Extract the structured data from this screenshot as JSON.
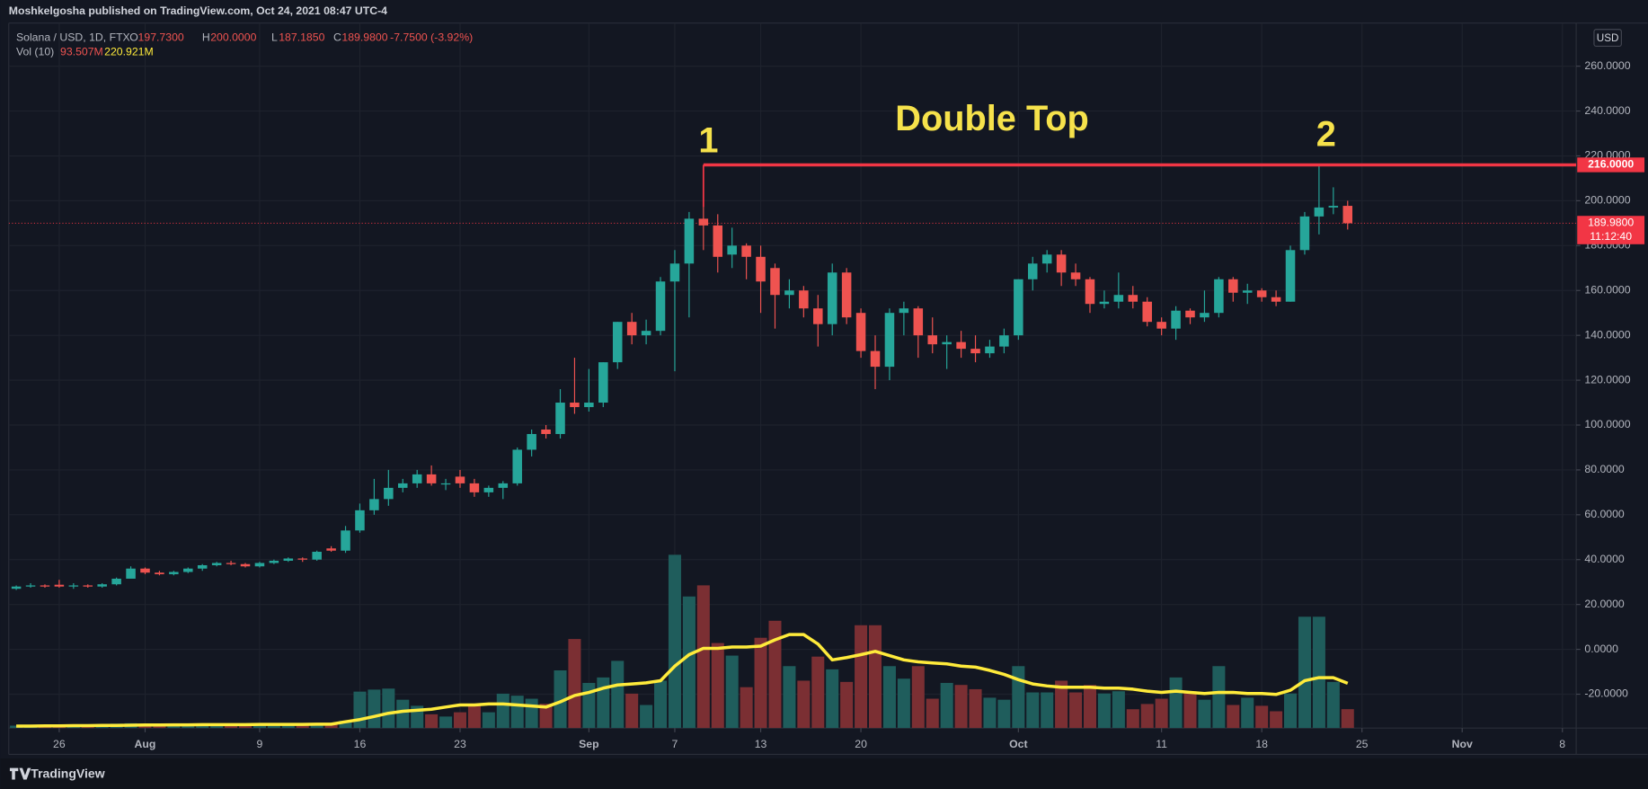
{
  "header": {
    "text": "Moshkelgosha published on TradingView.com, Oct 24, 2021 08:47 UTC-4"
  },
  "footer": {
    "brand": "TradingView"
  },
  "chart_data": {
    "type": "candlestick",
    "currency": "USD",
    "x": [
      "Jul 23",
      "Jul 24",
      "Jul 25",
      "Jul 26",
      "Jul 27",
      "Jul 28",
      "Jul 29",
      "Jul 30",
      "Jul 31",
      "Aug 1",
      "Aug 2",
      "Aug 3",
      "Aug 4",
      "Aug 5",
      "Aug 6",
      "Aug 7",
      "Aug 8",
      "Aug 9",
      "Aug 10",
      "Aug 11",
      "Aug 12",
      "Aug 13",
      "Aug 14",
      "Aug 15",
      "Aug 16",
      "Aug 17",
      "Aug 18",
      "Aug 19",
      "Aug 20",
      "Aug 21",
      "Aug 22",
      "Aug 23",
      "Aug 24",
      "Aug 25",
      "Aug 26",
      "Aug 27",
      "Aug 28",
      "Aug 29",
      "Aug 30",
      "Aug 31",
      "Sep 1",
      "Sep 2",
      "Sep 3",
      "Sep 4",
      "Sep 5",
      "Sep 6",
      "Sep 7",
      "Sep 8",
      "Sep 9",
      "Sep 10",
      "Sep 11",
      "Sep 12",
      "Sep 13",
      "Sep 14",
      "Sep 15",
      "Sep 16",
      "Sep 17",
      "Sep 18",
      "Sep 19",
      "Sep 20",
      "Sep 21",
      "Sep 22",
      "Sep 23",
      "Sep 24",
      "Sep 25",
      "Sep 26",
      "Sep 27",
      "Sep 28",
      "Sep 29",
      "Sep 30",
      "Oct 1",
      "Oct 2",
      "Oct 3",
      "Oct 4",
      "Oct 5",
      "Oct 6",
      "Oct 7",
      "Oct 8",
      "Oct 9",
      "Oct 10",
      "Oct 11",
      "Oct 12",
      "Oct 13",
      "Oct 14",
      "Oct 15",
      "Oct 16",
      "Oct 17",
      "Oct 18",
      "Oct 19",
      "Oct 20",
      "Oct 21",
      "Oct 22",
      "Oct 23",
      "Oct 24"
    ],
    "series": [
      {
        "name": "Solana / USD, 1D, FTX",
        "up_color": "#26a69a",
        "down_color": "#ef5350",
        "open": [
          27,
          28,
          28.5,
          28.8,
          28,
          28.5,
          28,
          29,
          31.5,
          36,
          34.2,
          33.5,
          34.5,
          36,
          37.5,
          38.5,
          38,
          37,
          38.5,
          39.5,
          40.5,
          40,
          45,
          44,
          53,
          62,
          67,
          72,
          74,
          78,
          73.5,
          77,
          74,
          70,
          72,
          74,
          89,
          98,
          96,
          110,
          108,
          110,
          128,
          146,
          140,
          142,
          164,
          172,
          192,
          189,
          176,
          180,
          175,
          170,
          158,
          160,
          152,
          145,
          168,
          150,
          133,
          126,
          150,
          152,
          140,
          136,
          137,
          134,
          132,
          135,
          140,
          165,
          172,
          176,
          168,
          165,
          154,
          155,
          158,
          155,
          146,
          143,
          151,
          148,
          150,
          165,
          159,
          160,
          157,
          155,
          178,
          193,
          197,
          197.73
        ],
        "high": [
          28.5,
          29.5,
          29,
          31,
          29.5,
          29,
          29.5,
          32,
          37,
          36.5,
          35,
          35,
          36.5,
          38,
          39,
          39.5,
          38.5,
          39,
          40,
          41,
          41,
          44,
          46,
          55,
          65,
          76,
          80,
          76,
          80,
          82,
          76,
          80,
          76,
          73,
          75,
          90,
          98,
          100,
          116,
          130,
          125,
          128,
          146,
          150,
          147,
          166,
          178,
          195,
          216,
          194,
          188,
          181,
          180,
          172,
          165,
          162,
          158,
          172,
          170,
          152,
          140,
          152,
          155,
          153,
          148,
          140,
          142,
          140,
          138,
          143,
          165,
          175,
          178,
          178,
          172,
          166,
          160,
          168,
          162,
          157,
          148,
          153,
          152,
          160,
          166,
          166,
          163,
          161,
          160,
          180,
          195,
          216,
          206,
          200
        ],
        "low": [
          26.5,
          27.5,
          27.5,
          27.5,
          27,
          27.5,
          27.5,
          28.5,
          32,
          33.5,
          33,
          33,
          34,
          35,
          37,
          37.5,
          36.5,
          36.5,
          38,
          39,
          39,
          39.5,
          43.5,
          43,
          52,
          60,
          64,
          70,
          72,
          73,
          71,
          72,
          68,
          68,
          67,
          73,
          86,
          94,
          94,
          105,
          106,
          108,
          125,
          136,
          136,
          140,
          124,
          148,
          178,
          168,
          170,
          165,
          150,
          143,
          152,
          148,
          135,
          140,
          145,
          130,
          116,
          120,
          140,
          130,
          132,
          125,
          130,
          128,
          130,
          132,
          138,
          160,
          168,
          162,
          162,
          150,
          152,
          152,
          152,
          144,
          140,
          138,
          145,
          146,
          148,
          155,
          154,
          155,
          153,
          155,
          176,
          185,
          194,
          187.185
        ],
        "close": [
          28,
          28.5,
          28,
          28,
          28.5,
          28,
          29,
          31.5,
          36,
          34.2,
          33.5,
          34.5,
          36,
          37.5,
          38.5,
          38,
          37,
          38.5,
          39.5,
          40.5,
          40,
          43.5,
          44,
          53,
          62,
          67,
          72,
          74,
          78,
          74,
          74,
          74,
          70,
          72,
          74,
          89,
          96,
          96,
          110,
          108,
          110,
          128,
          146,
          140,
          142,
          164,
          172,
          192,
          189,
          175,
          180,
          175,
          164,
          158,
          160,
          152,
          145,
          168,
          148,
          133,
          126,
          150,
          152,
          140,
          136,
          137,
          134,
          132,
          135,
          140,
          165,
          172,
          176,
          168,
          165,
          154,
          155,
          158,
          155,
          146,
          143,
          151,
          148,
          150,
          165,
          159,
          160,
          157,
          155,
          178,
          193,
          197,
          197.73,
          189.98
        ]
      }
    ],
    "legend": {
      "open_label": "O",
      "open": "197.7300",
      "high_label": "H",
      "high": "200.0000",
      "low_label": "L",
      "low": "187.1850",
      "close_label": "C",
      "close": "189.9800",
      "change": "-7.7500 (-3.92%)"
    },
    "volume": {
      "name": "Vol (10)",
      "up_color": "#1f5d5c",
      "down_color": "#7b2f33",
      "ma_color": "#ffeb3b",
      "values": [
        12,
        14,
        10,
        15,
        13,
        11,
        16,
        22,
        24,
        20,
        14,
        16,
        18,
        20,
        22,
        15,
        14,
        18,
        19,
        17,
        16,
        22,
        18,
        36,
        180,
        190,
        195,
        140,
        110,
        68,
        57,
        78,
        110,
        78,
        170,
        160,
        145,
        120,
        285,
        440,
        223,
        250,
        332,
        170,
        114,
        234,
        856,
        650,
        705,
        420,
        358,
        202,
        446,
        530,
        306,
        234,
        353,
        290,
        228,
        508,
        508,
        306,
        244,
        306,
        145,
        223,
        213,
        192,
        150,
        140,
        306,
        176,
        176,
        234,
        176,
        213,
        171,
        182,
        93,
        119,
        145,
        250,
        182,
        140,
        306,
        114,
        150,
        110,
        83,
        171,
        550,
        550,
        228,
        93.507
      ],
      "ma": [
        10,
        10,
        11,
        11,
        12,
        12,
        13,
        13,
        14,
        15,
        15,
        16,
        16,
        17,
        17,
        17,
        17,
        18,
        18,
        18,
        18,
        19,
        19,
        31,
        42,
        57,
        73,
        83,
        88,
        93,
        104,
        114,
        114,
        119,
        119,
        114,
        109,
        104,
        130,
        161,
        176,
        197,
        213,
        218,
        223,
        234,
        306,
        363,
        394,
        394,
        400,
        400,
        405,
        436,
        462,
        462,
        415,
        337,
        348,
        363,
        379,
        358,
        337,
        327,
        322,
        317,
        306,
        301,
        285,
        265,
        239,
        218,
        208,
        202,
        202,
        202,
        197,
        197,
        192,
        182,
        176,
        182,
        176,
        171,
        176,
        176,
        171,
        171,
        166,
        187,
        234,
        249,
        249,
        220.921
      ],
      "value_label": "93.507M",
      "ma_label": "220.921M"
    },
    "xlim": [
      "Jul 22",
      "Nov 9"
    ],
    "xticks": [
      {
        "value": "Jul 26",
        "label": "26"
      },
      {
        "value": "Aug 1",
        "label": "Aug"
      },
      {
        "value": "Aug 9",
        "label": "9"
      },
      {
        "value": "Aug 16",
        "label": "16"
      },
      {
        "value": "Aug 23",
        "label": "23"
      },
      {
        "value": "Sep 1",
        "label": "Sep"
      },
      {
        "value": "Sep 7",
        "label": "7"
      },
      {
        "value": "Sep 13",
        "label": "13"
      },
      {
        "value": "Sep 20",
        "label": "20"
      },
      {
        "value": "Oct 1",
        "label": "Oct"
      },
      {
        "value": "Oct 11",
        "label": "11"
      },
      {
        "value": "Oct 18",
        "label": "18"
      },
      {
        "value": "Oct 25",
        "label": "25"
      },
      {
        "value": "Nov 1",
        "label": "Nov"
      },
      {
        "value": "Nov 8",
        "label": "8"
      }
    ],
    "ylim": [
      -35.1,
      279.2
    ],
    "yticks": [
      {
        "value": 260,
        "label": "260.0000"
      },
      {
        "value": 240,
        "label": "240.0000"
      },
      {
        "value": 220,
        "label": "220.0000"
      },
      {
        "value": 200,
        "label": "200.0000"
      },
      {
        "value": 180,
        "label": "180.0000"
      },
      {
        "value": 160,
        "label": "160.0000"
      },
      {
        "value": 140,
        "label": "140.0000"
      },
      {
        "value": 120,
        "label": "120.0000"
      },
      {
        "value": 100,
        "label": "100.0000"
      },
      {
        "value": 80,
        "label": "80.0000"
      },
      {
        "value": 60,
        "label": "60.0000"
      },
      {
        "value": 40,
        "label": "40.0000"
      },
      {
        "value": 20,
        "label": "20.0000"
      },
      {
        "value": 0,
        "label": "0.0000"
      },
      {
        "value": -20,
        "label": "-20.0000"
      }
    ],
    "grid": true,
    "resistance": {
      "value": 216,
      "label": "216.0000",
      "start": "Sep 9",
      "color": "#f23645"
    },
    "last_price": {
      "value": 189.98,
      "label": "189.9800",
      "countdown": "11:12:40",
      "color": "#f23645"
    },
    "annotations": [
      {
        "text": "1"
      },
      {
        "text": "Double Top"
      },
      {
        "text": "2"
      }
    ]
  }
}
